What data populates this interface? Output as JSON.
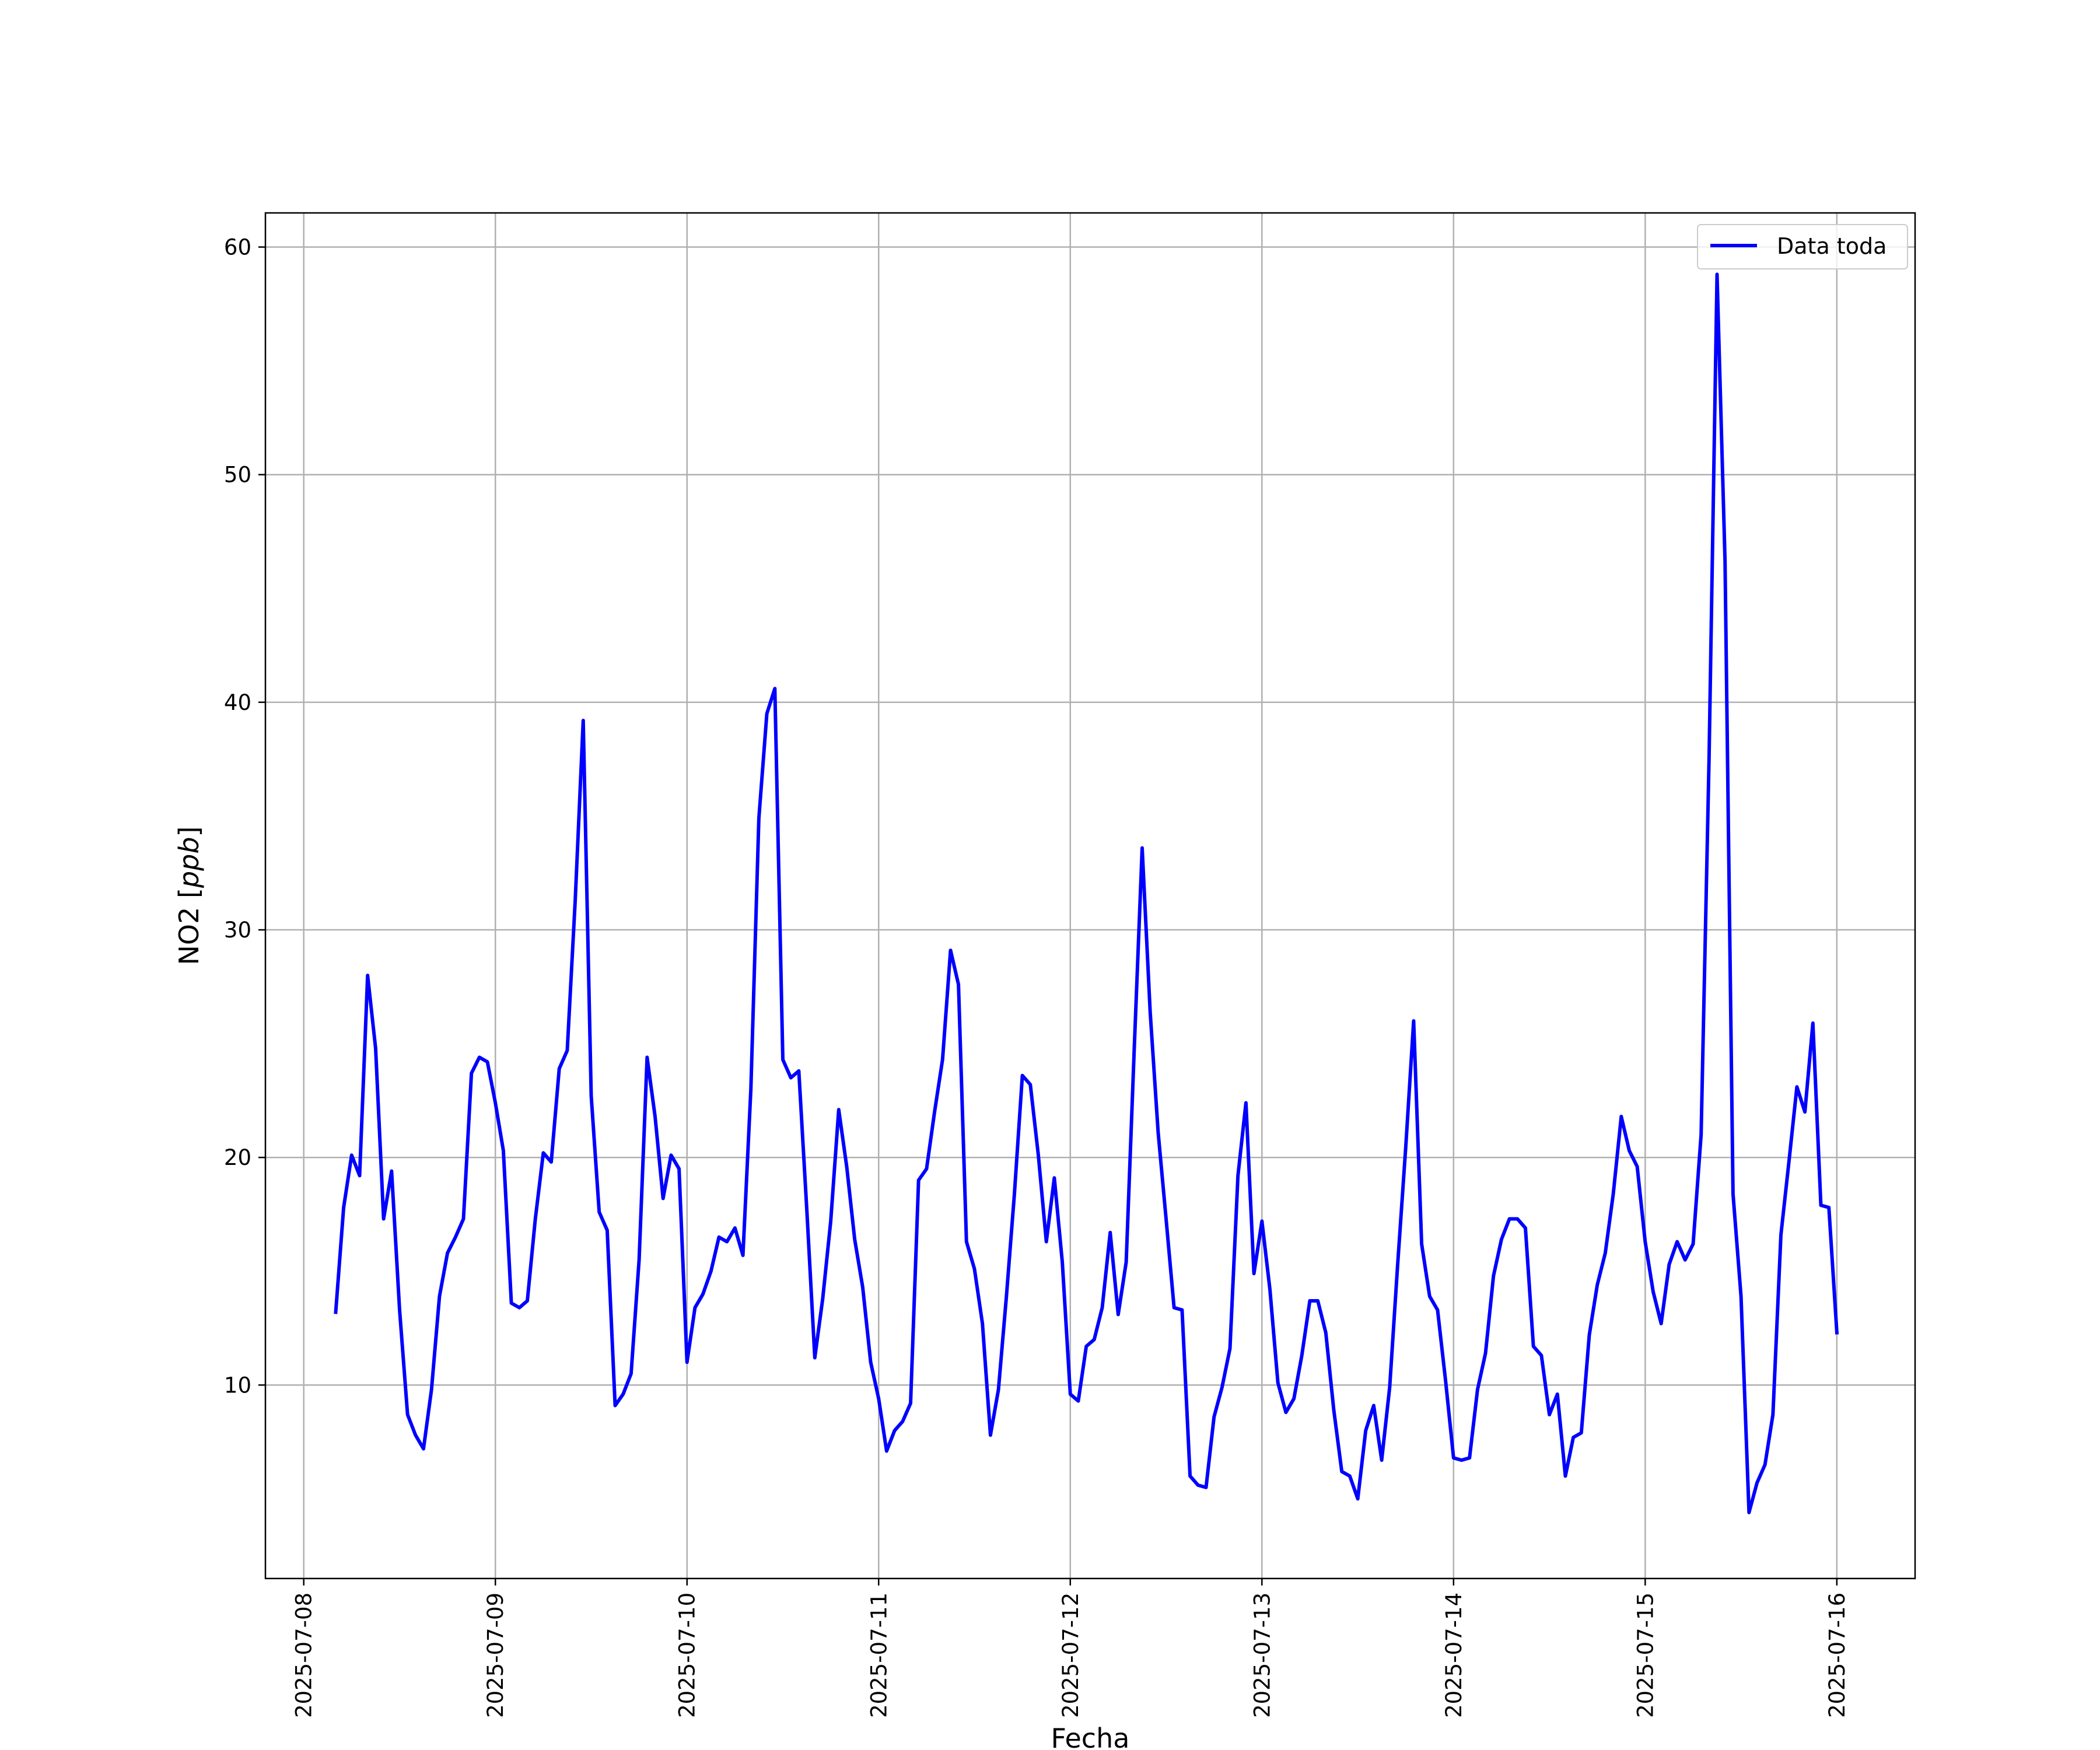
{
  "chart_data": {
    "type": "line",
    "title": "",
    "xlabel": "Fecha",
    "ylabel": "NO2 [",
    "ylabel_unit": "ppb",
    "ylabel_close": "]",
    "x_ticks": [
      "2025-07-08",
      "2025-07-09",
      "2025-07-10",
      "2025-07-11",
      "2025-07-12",
      "2025-07-13",
      "2025-07-14",
      "2025-07-15",
      "2025-07-16"
    ],
    "y_ticks": [
      10,
      20,
      30,
      40,
      50,
      60
    ],
    "y_tick_labels": [
      "10",
      "20",
      "30",
      "40",
      "50",
      "60"
    ],
    "xlim": [
      "2025-07-07T19:12",
      "2025-07-16T09:48"
    ],
    "ylim": [
      1.5,
      61.5
    ],
    "grid": true,
    "legend_position": "upper-right",
    "colors": {
      "series": "#0000ff",
      "grid": "#b0b0b0",
      "axes": "#000000"
    },
    "series": [
      {
        "name": "Data toda",
        "x": [
          "2025-07-08T04:00",
          "2025-07-08T05:00",
          "2025-07-08T06:00",
          "2025-07-08T07:00",
          "2025-07-08T08:00",
          "2025-07-08T09:00",
          "2025-07-08T10:00",
          "2025-07-08T11:00",
          "2025-07-08T12:00",
          "2025-07-08T13:00",
          "2025-07-08T14:00",
          "2025-07-08T15:00",
          "2025-07-08T16:00",
          "2025-07-08T17:00",
          "2025-07-08T18:00",
          "2025-07-08T19:00",
          "2025-07-08T20:00",
          "2025-07-08T21:00",
          "2025-07-08T22:00",
          "2025-07-08T23:00",
          "2025-07-09T00:00",
          "2025-07-09T01:00",
          "2025-07-09T02:00",
          "2025-07-09T03:00",
          "2025-07-09T04:00",
          "2025-07-09T05:00",
          "2025-07-09T06:00",
          "2025-07-09T07:00",
          "2025-07-09T08:00",
          "2025-07-09T09:00",
          "2025-07-09T10:00",
          "2025-07-09T11:00",
          "2025-07-09T12:00",
          "2025-07-09T13:00",
          "2025-07-09T14:00",
          "2025-07-09T15:00",
          "2025-07-09T16:00",
          "2025-07-09T17:00",
          "2025-07-09T18:00",
          "2025-07-09T19:00",
          "2025-07-09T20:00",
          "2025-07-09T21:00",
          "2025-07-09T22:00",
          "2025-07-09T23:00",
          "2025-07-10T00:00",
          "2025-07-10T01:00",
          "2025-07-10T02:00",
          "2025-07-10T03:00",
          "2025-07-10T04:00",
          "2025-07-10T05:00",
          "2025-07-10T06:00",
          "2025-07-10T07:00",
          "2025-07-10T08:00",
          "2025-07-10T09:00",
          "2025-07-10T10:00",
          "2025-07-10T11:00",
          "2025-07-10T12:00",
          "2025-07-10T13:00",
          "2025-07-10T14:00",
          "2025-07-10T15:00",
          "2025-07-10T16:00",
          "2025-07-10T17:00",
          "2025-07-10T18:00",
          "2025-07-10T19:00",
          "2025-07-10T20:00",
          "2025-07-10T21:00",
          "2025-07-10T22:00",
          "2025-07-10T23:00",
          "2025-07-11T00:00",
          "2025-07-11T01:00",
          "2025-07-11T02:00",
          "2025-07-11T03:00",
          "2025-07-11T04:00",
          "2025-07-11T05:00",
          "2025-07-11T06:00",
          "2025-07-11T07:00",
          "2025-07-11T08:00",
          "2025-07-11T09:00",
          "2025-07-11T10:00",
          "2025-07-11T11:00",
          "2025-07-11T12:00",
          "2025-07-11T13:00",
          "2025-07-11T14:00",
          "2025-07-11T15:00",
          "2025-07-11T16:00",
          "2025-07-11T17:00",
          "2025-07-11T18:00",
          "2025-07-11T19:00",
          "2025-07-11T20:00",
          "2025-07-11T21:00",
          "2025-07-11T22:00",
          "2025-07-11T23:00",
          "2025-07-12T00:00",
          "2025-07-12T01:00",
          "2025-07-12T02:00",
          "2025-07-12T03:00",
          "2025-07-12T04:00",
          "2025-07-12T05:00",
          "2025-07-12T06:00",
          "2025-07-12T07:00",
          "2025-07-12T08:00",
          "2025-07-12T09:00",
          "2025-07-12T10:00",
          "2025-07-12T11:00",
          "2025-07-12T12:00",
          "2025-07-12T13:00",
          "2025-07-12T14:00",
          "2025-07-12T15:00",
          "2025-07-12T16:00",
          "2025-07-12T17:00",
          "2025-07-12T18:00",
          "2025-07-12T19:00",
          "2025-07-12T20:00",
          "2025-07-12T21:00",
          "2025-07-12T22:00",
          "2025-07-12T23:00",
          "2025-07-13T00:00",
          "2025-07-13T01:00",
          "2025-07-13T02:00",
          "2025-07-13T03:00",
          "2025-07-13T04:00",
          "2025-07-13T05:00",
          "2025-07-13T06:00",
          "2025-07-13T07:00",
          "2025-07-13T08:00",
          "2025-07-13T09:00",
          "2025-07-13T10:00",
          "2025-07-13T11:00",
          "2025-07-13T12:00",
          "2025-07-13T13:00",
          "2025-07-13T14:00",
          "2025-07-13T15:00",
          "2025-07-13T16:00",
          "2025-07-13T17:00",
          "2025-07-13T18:00",
          "2025-07-13T19:00",
          "2025-07-13T20:00",
          "2025-07-13T21:00",
          "2025-07-13T22:00",
          "2025-07-13T23:00",
          "2025-07-14T00:00",
          "2025-07-14T01:00",
          "2025-07-14T02:00",
          "2025-07-14T03:00",
          "2025-07-14T04:00",
          "2025-07-14T05:00",
          "2025-07-14T06:00",
          "2025-07-14T07:00",
          "2025-07-14T08:00",
          "2025-07-14T09:00",
          "2025-07-14T10:00",
          "2025-07-14T11:00",
          "2025-07-14T12:00",
          "2025-07-14T13:00",
          "2025-07-14T14:00",
          "2025-07-14T15:00",
          "2025-07-14T16:00",
          "2025-07-14T17:00",
          "2025-07-14T18:00",
          "2025-07-14T19:00",
          "2025-07-14T20:00",
          "2025-07-14T21:00",
          "2025-07-14T22:00",
          "2025-07-14T23:00",
          "2025-07-15T00:00",
          "2025-07-15T01:00",
          "2025-07-15T02:00",
          "2025-07-15T03:00",
          "2025-07-15T04:00",
          "2025-07-15T05:00",
          "2025-07-15T06:00",
          "2025-07-15T07:00",
          "2025-07-15T08:00",
          "2025-07-15T09:00",
          "2025-07-15T10:00",
          "2025-07-15T11:00",
          "2025-07-15T12:00",
          "2025-07-15T13:00",
          "2025-07-15T14:00",
          "2025-07-15T15:00",
          "2025-07-15T16:00",
          "2025-07-15T17:00",
          "2025-07-15T18:00",
          "2025-07-15T19:00",
          "2025-07-15T20:00",
          "2025-07-15T21:00",
          "2025-07-15T22:00",
          "2025-07-15T23:00",
          "2025-07-16T00:00"
        ],
        "values": [
          13.2,
          17.8,
          20.1,
          19.2,
          28.0,
          24.8,
          17.3,
          19.4,
          13.3,
          8.7,
          7.8,
          7.2,
          9.8,
          13.9,
          15.8,
          16.5,
          17.3,
          23.7,
          24.4,
          24.2,
          22.4,
          20.3,
          13.6,
          13.4,
          13.7,
          17.3,
          20.2,
          19.8,
          23.9,
          24.7,
          31.3,
          39.2,
          22.7,
          17.6,
          16.8,
          9.1,
          9.6,
          10.5,
          15.5,
          24.4,
          21.8,
          18.2,
          20.1,
          19.5,
          11.0,
          13.4,
          14.0,
          15.0,
          16.5,
          16.3,
          16.9,
          15.7,
          23.0,
          34.9,
          39.5,
          40.6,
          24.3,
          23.5,
          23.8,
          17.7,
          11.2,
          13.8,
          17.2,
          22.1,
          19.6,
          16.4,
          14.3,
          11.0,
          9.4,
          7.1,
          8.0,
          8.4,
          9.2,
          19.0,
          19.5,
          22.0,
          24.3,
          29.1,
          27.6,
          16.3,
          15.1,
          12.7,
          7.8,
          9.8,
          13.9,
          18.4,
          23.6,
          23.2,
          20.1,
          16.3,
          19.1,
          15.4,
          9.6,
          9.3,
          11.7,
          12.0,
          13.4,
          16.7,
          13.1,
          15.4,
          24.7,
          33.6,
          26.4,
          21.1,
          17.3,
          13.4,
          13.3,
          6.0,
          5.6,
          5.5,
          8.6,
          9.9,
          11.6,
          19.2,
          22.4,
          14.9,
          17.2,
          14.2,
          10.1,
          8.8,
          9.4,
          11.3,
          13.7,
          13.7,
          12.3,
          8.9,
          6.2,
          6.0,
          5.0,
          8.0,
          9.1,
          6.7,
          9.9,
          15.3,
          20.4,
          26.0,
          16.2,
          13.9,
          13.3,
          10.2,
          6.8,
          6.7,
          6.8,
          9.8,
          11.4,
          14.8,
          16.4,
          17.3,
          17.3,
          16.9,
          11.7,
          11.3,
          8.7,
          9.6,
          6.0,
          7.7,
          7.9,
          12.2,
          14.4,
          15.8,
          18.4,
          21.8,
          20.3,
          19.6,
          16.3,
          14.1,
          12.7,
          15.3,
          16.3,
          15.5,
          16.2,
          21.0,
          37.5,
          58.8,
          46.2,
          18.4,
          13.9,
          4.4,
          5.7,
          6.5,
          8.7,
          16.6,
          19.8,
          23.1,
          22.0,
          25.9,
          17.9,
          17.8,
          12.3
        ]
      }
    ]
  }
}
